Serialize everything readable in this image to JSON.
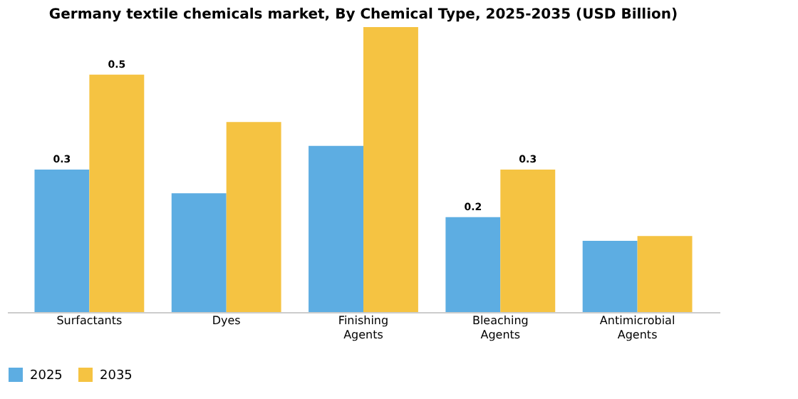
{
  "chart_data": {
    "type": "bar",
    "title": "Germany textile chemicals market, By Chemical Type, 2025-2035 (USD Billion)",
    "categories": [
      "Surfactants",
      "Dyes",
      "Finishing Agents",
      "Bleaching Agents",
      "Antimicrobial Agents"
    ],
    "series": [
      {
        "name": "2025",
        "color": "#5dade2",
        "values": [
          0.3,
          0.25,
          0.35,
          0.2,
          0.15
        ],
        "value_labels": [
          "0.3",
          null,
          null,
          "0.2",
          null
        ]
      },
      {
        "name": "2035",
        "color": "#f5c342",
        "values": [
          0.5,
          0.4,
          0.6,
          0.3,
          0.16
        ],
        "value_labels": [
          "0.5",
          null,
          null,
          "0.3",
          null
        ]
      }
    ],
    "legend": "bottom",
    "grid": false
  }
}
